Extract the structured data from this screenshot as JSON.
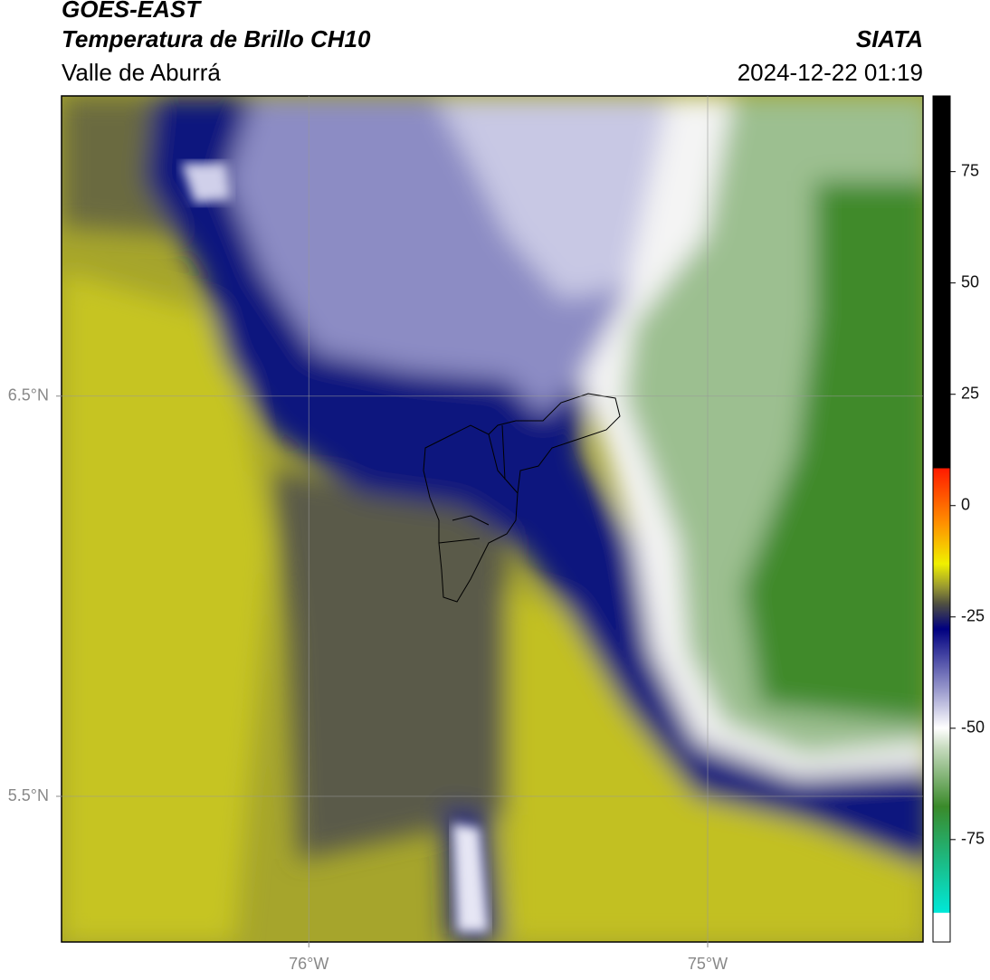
{
  "header": {
    "satellite": "GOES-EAST",
    "product": "Temperatura de Brillo CH10",
    "region": "Valle de Aburrá",
    "source": "SIATA",
    "timestamp": "2024-12-22 01:19"
  },
  "map": {
    "xlim": [
      -76.62,
      -74.46
    ],
    "ylim": [
      5.136,
      7.25
    ],
    "xticks": [
      {
        "value": -76,
        "label": "76°W"
      },
      {
        "value": -75,
        "label": "75°W"
      }
    ],
    "yticks": [
      {
        "value": 6.5,
        "label": "6.5°N"
      },
      {
        "value": 5.5,
        "label": "5.5°N"
      }
    ],
    "grid": true
  },
  "colorbar": {
    "vlim": [
      -98,
      92
    ],
    "ticks": [
      75,
      50,
      25,
      0,
      -25,
      -50,
      -75
    ]
  }
}
